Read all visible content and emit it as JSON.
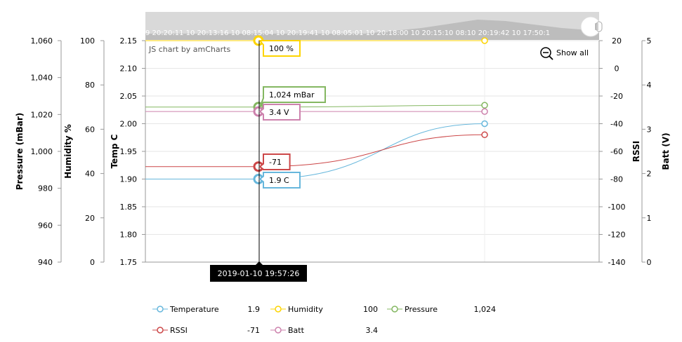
{
  "chart_data": {
    "type": "line",
    "watermark": "JS chart by amCharts",
    "show_all_label": "Show all",
    "scrollbar_labels": "9 20:20:11 10 20:13:16 10 08:15:04 10 20:19:41 10 08:05:01 10 20:18:00 10 20:15:10 08:10 20:19:42 10 17:50:1",
    "cursor_label": "2019-01-10 19:57:26",
    "axes": {
      "pressure": {
        "title": "Pressure (mBar)",
        "min": 940,
        "max": 1060,
        "ticks": [
          "940",
          "960",
          "980",
          "1,000",
          "1,020",
          "1,040",
          "1,060"
        ],
        "tick_values": [
          940,
          960,
          980,
          1000,
          1020,
          1040,
          1060
        ]
      },
      "humidity": {
        "title": "Humidity %",
        "min": 0,
        "max": 100,
        "ticks": [
          "0",
          "20",
          "40",
          "60",
          "80",
          "100"
        ],
        "tick_values": [
          0,
          20,
          40,
          60,
          80,
          100
        ]
      },
      "temp": {
        "title": "Temp C",
        "min": 1.75,
        "max": 2.15,
        "ticks": [
          "1.75",
          "1.80",
          "1.85",
          "1.90",
          "1.95",
          "2.00",
          "2.05",
          "2.10",
          "2.15"
        ],
        "tick_values": [
          1.75,
          1.8,
          1.85,
          1.9,
          1.95,
          2.0,
          2.05,
          2.1,
          2.15
        ]
      },
      "rssi": {
        "title": "RSSI",
        "min": -140,
        "max": 20,
        "ticks": [
          "-140",
          "-120",
          "-100",
          "-80",
          "-60",
          "-40",
          "-20",
          "0",
          "20"
        ],
        "tick_values": [
          -140,
          -120,
          -100,
          -80,
          -60,
          -40,
          -20,
          0,
          20
        ]
      },
      "batt": {
        "title": "Batt (V)",
        "min": 0,
        "max": 5,
        "ticks": [
          "0",
          "1",
          "2",
          "3",
          "4",
          "5"
        ],
        "tick_values": [
          0,
          1,
          2,
          3,
          4,
          5
        ]
      }
    },
    "x": [
      "2019-01-10 19:57:26",
      "2019-01-10 20:18:00"
    ],
    "series": [
      {
        "name": "Temperature",
        "axis": "temp",
        "color": "#67b7dc",
        "values": [
          1.9,
          2.0
        ],
        "legend_value": "1.9",
        "balloon": "1.9 C"
      },
      {
        "name": "Humidity",
        "axis": "humidity",
        "color": "#fdd400",
        "values": [
          100,
          100
        ],
        "legend_value": "100",
        "balloon": "100 %"
      },
      {
        "name": "Pressure",
        "axis": "pressure",
        "color": "#84b761",
        "values": [
          1024,
          1025
        ],
        "legend_value": "1,024",
        "balloon": "1,024 mBar"
      },
      {
        "name": "RSSI",
        "axis": "rssi",
        "color": "#cc4748",
        "values": [
          -71,
          -48
        ],
        "legend_value": "-71",
        "balloon": "-71"
      },
      {
        "name": "Batt",
        "axis": "batt",
        "color": "#cd82ad",
        "values": [
          3.4,
          3.4
        ],
        "legend_value": "3.4",
        "balloon": "3.4 V"
      }
    ],
    "grid": true,
    "legend_position": "bottom"
  }
}
